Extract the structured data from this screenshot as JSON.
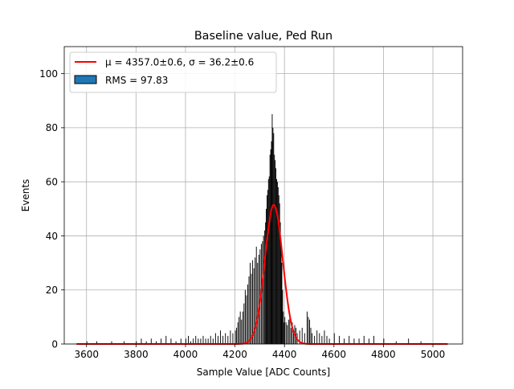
{
  "chart_data": {
    "type": "histogram",
    "title": "Baseline value, Ped Run",
    "xlabel": "Sample Value [ADC Counts]",
    "ylabel": "Events",
    "xlim": [
      3510,
      5120
    ],
    "ylim": [
      0,
      110
    ],
    "xticks": [
      3600,
      3800,
      4000,
      4200,
      4400,
      4600,
      4800,
      5000
    ],
    "yticks": [
      0,
      20,
      40,
      60,
      80,
      100
    ],
    "grid": true,
    "legend_position": "top-left",
    "legend": [
      {
        "label": "μ = 4357.0±0.6, σ = 36.2±0.6",
        "kind": "line",
        "color": "#ff0000"
      },
      {
        "label": "RMS = 97.83",
        "kind": "patch",
        "color": "#1f77b4"
      }
    ],
    "histogram": {
      "bin_width": 3,
      "bins": [
        [
          4310,
          38
        ],
        [
          4314,
          40
        ],
        [
          4318,
          42
        ],
        [
          4322,
          45
        ],
        [
          4325,
          50
        ],
        [
          4328,
          55
        ],
        [
          4331,
          57
        ],
        [
          4334,
          61
        ],
        [
          4337,
          62
        ],
        [
          4340,
          70
        ],
        [
          4343,
          72
        ],
        [
          4346,
          75
        ],
        [
          4349,
          85
        ],
        [
          4352,
          80
        ],
        [
          4355,
          78
        ],
        [
          4358,
          70
        ],
        [
          4361,
          68
        ],
        [
          4364,
          65
        ],
        [
          4367,
          61
        ],
        [
          4370,
          60
        ],
        [
          4373,
          58
        ],
        [
          4376,
          55
        ],
        [
          4379,
          52
        ],
        [
          4382,
          45
        ],
        [
          4385,
          38
        ],
        [
          4388,
          30
        ],
        [
          4391,
          20
        ],
        [
          4394,
          12
        ],
        [
          4397,
          8
        ],
        [
          4260,
          30
        ],
        [
          4265,
          26
        ],
        [
          4270,
          31
        ],
        [
          4275,
          28
        ],
        [
          4280,
          32
        ],
        [
          4285,
          36
        ],
        [
          4290,
          30
        ],
        [
          4295,
          33
        ],
        [
          4300,
          35
        ],
        [
          4305,
          37
        ],
        [
          4230,
          12
        ],
        [
          4235,
          15
        ],
        [
          4240,
          20
        ],
        [
          4245,
          18
        ],
        [
          4250,
          22
        ],
        [
          4255,
          25
        ],
        [
          4200,
          5
        ],
        [
          4205,
          6
        ],
        [
          4210,
          8
        ],
        [
          4215,
          10
        ],
        [
          4220,
          12
        ],
        [
          4225,
          9
        ],
        [
          4400,
          10
        ],
        [
          4405,
          8
        ],
        [
          4410,
          7
        ],
        [
          4415,
          9
        ],
        [
          4420,
          11
        ],
        [
          4425,
          6
        ],
        [
          4430,
          8
        ],
        [
          4435,
          5
        ],
        [
          4440,
          7
        ],
        [
          4445,
          6
        ],
        [
          4450,
          4
        ],
        [
          4460,
          5
        ],
        [
          4470,
          6
        ],
        [
          4480,
          4
        ],
        [
          4490,
          12
        ],
        [
          4495,
          10
        ],
        [
          4500,
          9
        ],
        [
          4505,
          6
        ],
        [
          4510,
          4
        ],
        [
          4520,
          3
        ],
        [
          4530,
          5
        ],
        [
          4540,
          4
        ],
        [
          4550,
          3
        ],
        [
          4560,
          5
        ],
        [
          4570,
          3
        ],
        [
          4580,
          2
        ],
        [
          4600,
          4
        ],
        [
          4620,
          3
        ],
        [
          4640,
          2
        ],
        [
          4660,
          3
        ],
        [
          4680,
          2
        ],
        [
          4700,
          2
        ],
        [
          4720,
          3
        ],
        [
          4740,
          2
        ],
        [
          4760,
          3
        ],
        [
          4800,
          2
        ],
        [
          4850,
          1
        ],
        [
          4900,
          2
        ],
        [
          4950,
          1
        ],
        [
          4100,
          3
        ],
        [
          4110,
          2
        ],
        [
          4120,
          4
        ],
        [
          4130,
          3
        ],
        [
          4140,
          5
        ],
        [
          4150,
          3
        ],
        [
          4160,
          4
        ],
        [
          4170,
          3
        ],
        [
          4180,
          5
        ],
        [
          4190,
          4
        ],
        [
          4000,
          2
        ],
        [
          4010,
          3
        ],
        [
          4020,
          1
        ],
        [
          4030,
          2
        ],
        [
          4040,
          3
        ],
        [
          4050,
          2
        ],
        [
          4060,
          2
        ],
        [
          4070,
          3
        ],
        [
          4080,
          2
        ],
        [
          4090,
          2
        ],
        [
          3900,
          2
        ],
        [
          3920,
          3
        ],
        [
          3940,
          2
        ],
        [
          3960,
          1
        ],
        [
          3980,
          2
        ],
        [
          3800,
          1
        ],
        [
          3820,
          2
        ],
        [
          3840,
          1
        ],
        [
          3860,
          2
        ],
        [
          3880,
          1
        ],
        [
          3600,
          1
        ],
        [
          3640,
          1
        ],
        [
          3700,
          1
        ],
        [
          3750,
          1
        ]
      ]
    },
    "fit": {
      "type": "gaussian",
      "mu": 4357.0,
      "sigma": 36.2,
      "amplitude": 51.5,
      "x_range": [
        3560,
        5060
      ]
    }
  }
}
